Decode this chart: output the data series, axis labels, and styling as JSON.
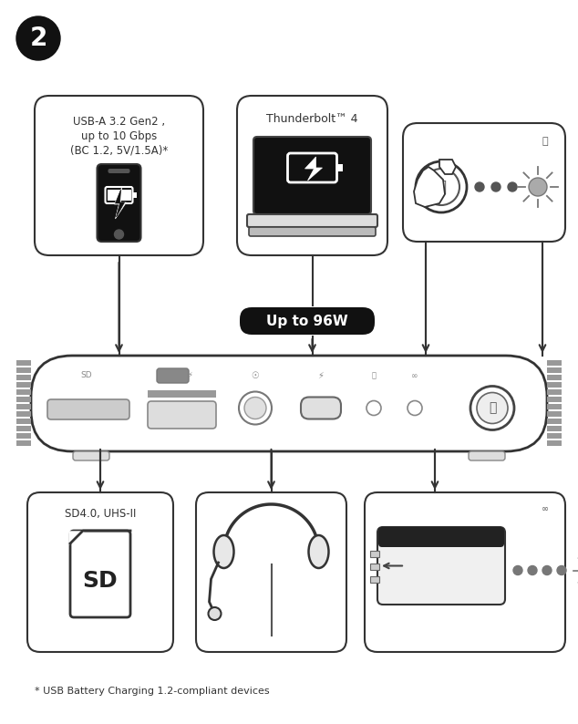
{
  "bg_color": "#ffffff",
  "step_number": "2",
  "footnote": "* USB Battery Charging 1.2-compliant devices",
  "top_left_label1": "USB-A 3.2 Gen2 ,",
  "top_left_label2": "up to 10 Gbps",
  "top_left_label3": "(BC 1.2, 5V/1.5A)*",
  "top_center_label": "Thunderbolt™ 4",
  "bottom_left_label": "SD4.0, UHS-II",
  "power_badge_text": "Up to 96W",
  "line_color": "#333333",
  "box_ec": "#333333",
  "gray1": "#888888",
  "gray2": "#555555",
  "gray3": "#cccccc",
  "gray4": "#aaaaaa"
}
